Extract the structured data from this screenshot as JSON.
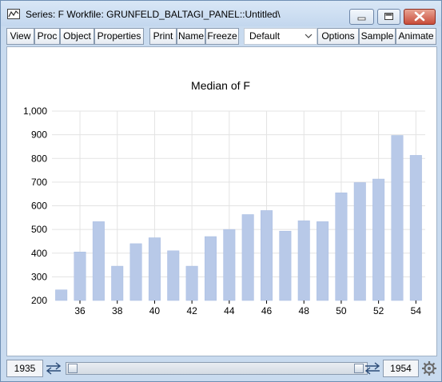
{
  "window": {
    "title": "Series: F   Workfile: GRUNFELD_BALTAGI_PANEL::Untitled\\"
  },
  "toolbar": {
    "buttons": [
      "View",
      "Proc",
      "Object",
      "Properties",
      "Print",
      "Name",
      "Freeze",
      "Options",
      "Sample",
      "Animate"
    ],
    "dropdown_value": "Default"
  },
  "statusbar": {
    "start": "1935",
    "end": "1954"
  },
  "icons": [
    "series-icon",
    "minimize-icon",
    "maximize-icon",
    "close-icon",
    "chevron-down-icon",
    "swap-arrows-icon",
    "gear-icon"
  ],
  "colors": {
    "bar_fill": "#b8c9e8",
    "grid": "#e3e3e3",
    "title_bar": "#c9dbef"
  },
  "chart_data": {
    "type": "bar",
    "title": "Median of F",
    "categories": [
      "35",
      "36",
      "37",
      "38",
      "39",
      "40",
      "41",
      "42",
      "43",
      "44",
      "45",
      "46",
      "47",
      "48",
      "49",
      "50",
      "51",
      "52",
      "53",
      "54"
    ],
    "tick_labels": [
      "36",
      "38",
      "40",
      "42",
      "44",
      "46",
      "48",
      "50",
      "52",
      "54"
    ],
    "values": [
      245,
      405,
      533,
      345,
      440,
      465,
      410,
      345,
      470,
      500,
      563,
      580,
      493,
      537,
      533,
      655,
      698,
      713,
      897,
      813
    ],
    "ylim": [
      200,
      1000
    ],
    "yticks": [
      "200",
      "300",
      "400",
      "500",
      "600",
      "700",
      "800",
      "900",
      "1,000"
    ],
    "grid": true,
    "legend": "none"
  }
}
